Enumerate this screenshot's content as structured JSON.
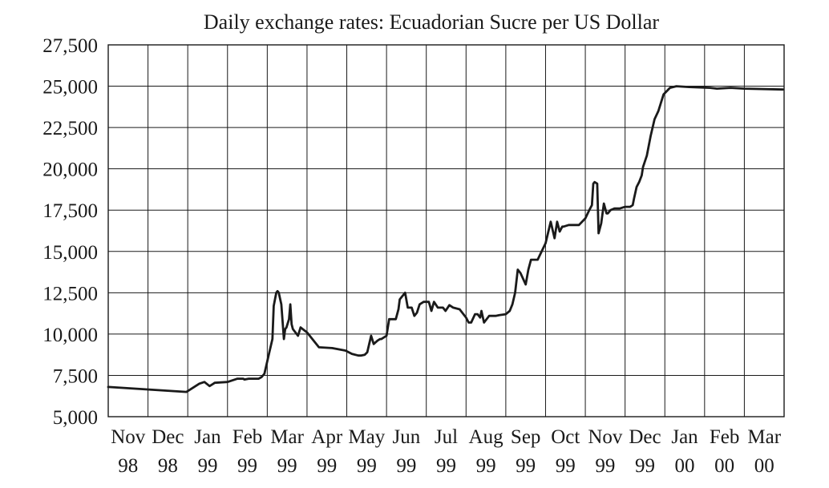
{
  "chart_data": {
    "type": "line",
    "title": "Daily exchange rates: Ecuadorian Sucre per US Dollar",
    "xlabel": "",
    "ylabel": "",
    "ylim": [
      5000,
      27500
    ],
    "yticks": [
      5000,
      7500,
      10000,
      12500,
      15000,
      17500,
      20000,
      22500,
      25000,
      27500
    ],
    "ytick_labels": [
      "5,000",
      "7,500",
      "10,000",
      "12,500",
      "15,000",
      "17,500",
      "20,000",
      "22,500",
      "25,000",
      "27,500"
    ],
    "xlim": [
      "1998-11-01",
      "2000-03-31"
    ],
    "xticks": [
      {
        "month": "Nov",
        "year": "98"
      },
      {
        "month": "Dec",
        "year": "98"
      },
      {
        "month": "Jan",
        "year": "99"
      },
      {
        "month": "Feb",
        "year": "99"
      },
      {
        "month": "Mar",
        "year": "99"
      },
      {
        "month": "Apr",
        "year": "99"
      },
      {
        "month": "May",
        "year": "99"
      },
      {
        "month": "Jun",
        "year": "99"
      },
      {
        "month": "Jul",
        "year": "99"
      },
      {
        "month": "Aug",
        "year": "99"
      },
      {
        "month": "Sep",
        "year": "99"
      },
      {
        "month": "Oct",
        "year": "99"
      },
      {
        "month": "Nov",
        "year": "99"
      },
      {
        "month": "Dec",
        "year": "99"
      },
      {
        "month": "Jan",
        "year": "00"
      },
      {
        "month": "Feb",
        "year": "00"
      },
      {
        "month": "Mar",
        "year": "00"
      }
    ],
    "grid": true,
    "series": [
      {
        "color": "#1a1a1a",
        "x": [
          "1998-11-01",
          "1998-12-31",
          "1999-01-10",
          "1999-01-14",
          "1999-01-18",
          "1999-01-21",
          "1999-01-22",
          "1999-02-01",
          "1999-02-08",
          "1999-02-12",
          "1999-02-13",
          "1999-02-16",
          "1999-02-20",
          "1999-02-23",
          "1999-02-25",
          "1999-02-27",
          "1999-03-02",
          "1999-03-05",
          "1999-03-06",
          "1999-03-08",
          "1999-03-09",
          "1999-03-10",
          "1999-03-12",
          "1999-03-14",
          "1999-03-15",
          "1999-03-16",
          "1999-03-18",
          "1999-03-19",
          "1999-03-20",
          "1999-03-21",
          "1999-03-25",
          "1999-03-27",
          "1999-04-01",
          "1999-04-10",
          "1999-04-20",
          "1999-04-30",
          "1999-05-05",
          "1999-05-10",
          "1999-05-12",
          "1999-05-15",
          "1999-05-17",
          "1999-05-20",
          "1999-05-22",
          "1999-05-25",
          "1999-05-27",
          "1999-05-28",
          "1999-06-01",
          "1999-06-03",
          "1999-06-08",
          "1999-06-10",
          "1999-06-11",
          "1999-06-15",
          "1999-06-17",
          "1999-06-19",
          "1999-06-20",
          "1999-06-22",
          "1999-06-24",
          "1999-06-26",
          "1999-06-29",
          "1999-07-03",
          "1999-07-05",
          "1999-07-07",
          "1999-07-10",
          "1999-07-14",
          "1999-07-16",
          "1999-07-19",
          "1999-07-22",
          "1999-07-27",
          "1999-08-01",
          "1999-08-03",
          "1999-08-05",
          "1999-08-08",
          "1999-08-10",
          "1999-08-12",
          "1999-08-13",
          "1999-08-15",
          "1999-08-18",
          "1999-08-19",
          "1999-08-22",
          "1999-08-24",
          "1999-08-27",
          "1999-09-01",
          "1999-09-04",
          "1999-09-06",
          "1999-09-08",
          "1999-09-10",
          "1999-09-12",
          "1999-09-16",
          "1999-09-18",
          "1999-09-20",
          "1999-09-22",
          "1999-09-25",
          "1999-10-01",
          "1999-10-05",
          "1999-10-08",
          "1999-10-10",
          "1999-10-12",
          "1999-10-14",
          "1999-10-15",
          "1999-10-19",
          "1999-10-22",
          "1999-10-27",
          "1999-11-01",
          "1999-11-04",
          "1999-11-06",
          "1999-11-07",
          "1999-11-08",
          "1999-11-10",
          "1999-11-11",
          "1999-11-13",
          "1999-11-15",
          "1999-11-17",
          "1999-11-18",
          "1999-11-20",
          "1999-11-23",
          "1999-11-27",
          "1999-12-01",
          "1999-12-05",
          "1999-12-07",
          "1999-12-08",
          "1999-12-10",
          "1999-12-12",
          "1999-12-14",
          "1999-12-15",
          "1999-12-18",
          "1999-12-21",
          "1999-12-24",
          "1999-12-27",
          "1999-12-31",
          "2000-01-05",
          "2000-01-10",
          "2000-01-20",
          "2000-02-05",
          "2000-02-10",
          "2000-02-20",
          "2000-03-01",
          "2000-03-31"
        ],
        "values": [
          6800,
          6500,
          7000,
          7100,
          6850,
          7000,
          7050,
          7100,
          7300,
          7300,
          7250,
          7300,
          7300,
          7300,
          7400,
          7600,
          8700,
          9700,
          11700,
          12500,
          12600,
          12500,
          11800,
          9700,
          10300,
          10400,
          10900,
          11800,
          10600,
          10300,
          9900,
          10400,
          10100,
          9200,
          9150,
          9000,
          8800,
          8700,
          8700,
          8750,
          8900,
          9900,
          9400,
          9600,
          9700,
          9700,
          9900,
          10900,
          10900,
          11500,
          12100,
          12500,
          11600,
          11600,
          11600,
          11100,
          11300,
          11800,
          11950,
          11950,
          11400,
          11950,
          11600,
          11600,
          11400,
          11750,
          11600,
          11500,
          11000,
          10700,
          10700,
          11200,
          11200,
          11000,
          11400,
          10700,
          11000,
          11100,
          11100,
          11100,
          11150,
          11200,
          11400,
          11800,
          12500,
          13900,
          13700,
          13000,
          13900,
          14500,
          14500,
          14500,
          15500,
          16800,
          15800,
          16800,
          16200,
          16500,
          16500,
          16600,
          16600,
          16600,
          17000,
          17500,
          17800,
          19100,
          19200,
          19100,
          16100,
          16700,
          17900,
          17300,
          17300,
          17500,
          17600,
          17600,
          17700,
          17700,
          17800,
          18200,
          18900,
          19200,
          19600,
          20100,
          20800,
          22000,
          23000,
          23500,
          24500,
          24900,
          25000,
          24950,
          24900,
          24850,
          24900,
          24850,
          24800
        ]
      }
    ]
  }
}
